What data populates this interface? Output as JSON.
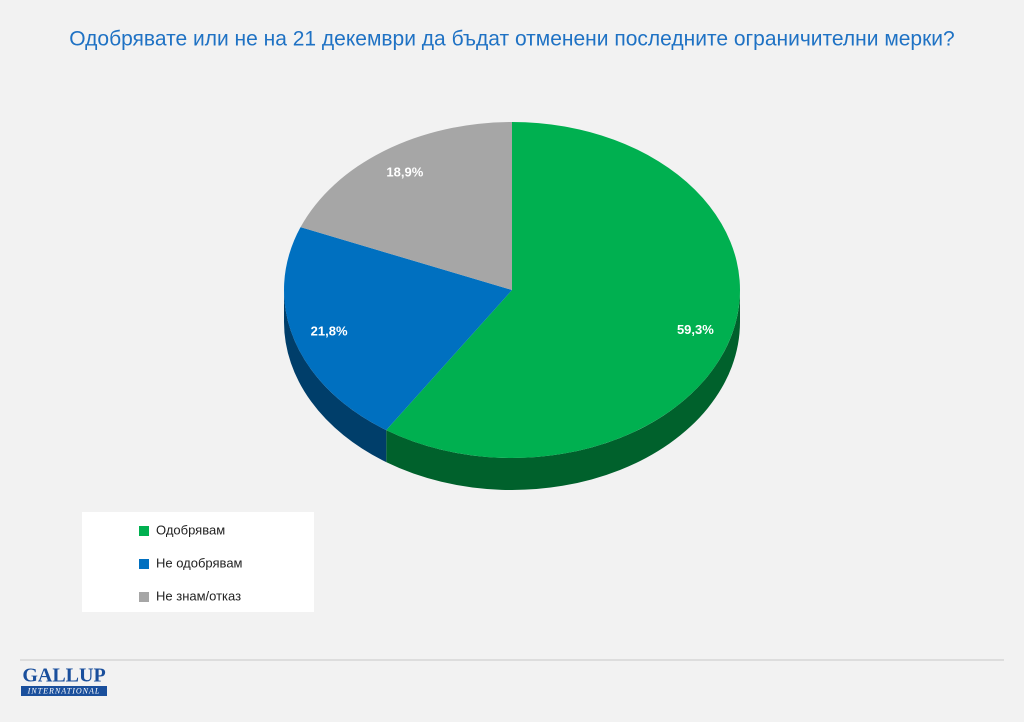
{
  "chart_data": {
    "type": "pie",
    "title": "Одобрявате или не на 21 декември да бъдат отменени последните ограничителни мерки?",
    "categories": [
      "Одобрявам",
      "Не одобрявам",
      "Не знам/отказ"
    ],
    "values": [
      59.3,
      21.8,
      18.9
    ],
    "value_labels": [
      "59,3%",
      "21,8%",
      "18,9%"
    ],
    "colors": [
      "#00b050",
      "#0070c0",
      "#a6a6a6"
    ],
    "legend": "bottom-left"
  },
  "footer": {
    "logo": "GALLUP",
    "logo_sub": "INTERNATIONAL"
  }
}
